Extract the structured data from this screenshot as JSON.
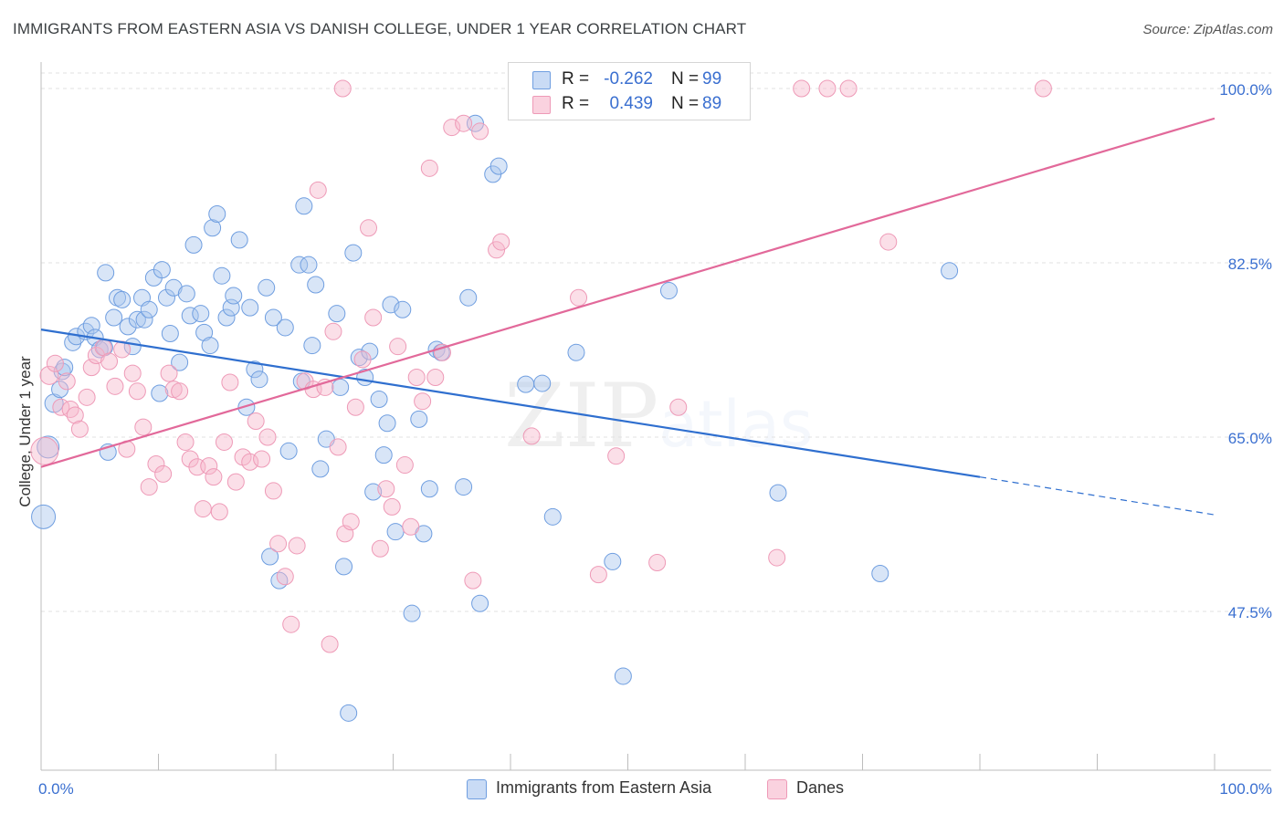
{
  "title": "IMMIGRANTS FROM EASTERN ASIA VS DANISH COLLEGE, UNDER 1 YEAR CORRELATION CHART",
  "source": "Source: ZipAtlas.com",
  "watermark": {
    "zip": "ZIP",
    "atlas": "atlas"
  },
  "legend": {
    "rows": [
      {
        "r_label": "R =",
        "r_value": "-0.262",
        "n_label": "N =",
        "n_value": "99",
        "color": "#a9c6ee"
      },
      {
        "r_label": "R =",
        "r_value": "0.439",
        "n_label": "N =",
        "n_value": "89",
        "color": "#f6b7cb"
      }
    ]
  },
  "bottom_legend": [
    {
      "label": "Immigrants from Eastern Asia",
      "color": "#a9c6ee"
    },
    {
      "label": "Danes",
      "color": "#f6b7cb"
    }
  ],
  "chart_data": {
    "type": "scatter",
    "title": "IMMIGRANTS FROM EASTERN ASIA VS DANISH COLLEGE, UNDER 1 YEAR CORRELATION CHART",
    "xlabel": "",
    "ylabel": "College, Under 1 year",
    "xlim": [
      0,
      100
    ],
    "ylim": [
      33,
      103
    ],
    "x_tick_labels": [
      "0.0%",
      "100.0%"
    ],
    "y_ticks": [
      47.5,
      65.0,
      82.5,
      100.0
    ],
    "y_tick_labels": [
      "47.5%",
      "65.0%",
      "82.5%",
      "100.0%"
    ],
    "grid": true,
    "legend_position": "top-center",
    "series": [
      {
        "name": "Immigrants from Eastern Asia",
        "color": "#6f9ee0",
        "fill": "#a9c6ee",
        "trend": {
          "x": [
            0,
            80
          ],
          "y": [
            75.8,
            61.0
          ],
          "dashed_to": [
            100,
            57.2
          ],
          "color": "#2f6fcf"
        },
        "points": [
          [
            0.2,
            57.0,
            12
          ],
          [
            0.6,
            64.0,
            11
          ],
          [
            1.1,
            68.4,
            9
          ],
          [
            1.6,
            69.8,
            8
          ],
          [
            1.8,
            71.6,
            8
          ],
          [
            2.0,
            72.0,
            8
          ],
          [
            2.7,
            74.5,
            8
          ],
          [
            3.0,
            75.1,
            8
          ],
          [
            3.8,
            75.6,
            8
          ],
          [
            4.3,
            76.2,
            8
          ],
          [
            4.6,
            75.0,
            8
          ],
          [
            5.0,
            73.8,
            8
          ],
          [
            5.4,
            74.0,
            8
          ],
          [
            5.5,
            81.5,
            8
          ],
          [
            5.7,
            63.5,
            8
          ],
          [
            6.2,
            77.0,
            8
          ],
          [
            6.5,
            79.0,
            8
          ],
          [
            6.9,
            78.8,
            8
          ],
          [
            7.4,
            76.1,
            8
          ],
          [
            7.8,
            74.1,
            8
          ],
          [
            8.2,
            76.8,
            8
          ],
          [
            8.6,
            79.0,
            8
          ],
          [
            8.8,
            76.8,
            8
          ],
          [
            9.2,
            77.8,
            8
          ],
          [
            9.6,
            81.0,
            8
          ],
          [
            10.1,
            69.4,
            8
          ],
          [
            10.3,
            81.8,
            8
          ],
          [
            10.7,
            79.0,
            8
          ],
          [
            11.0,
            75.4,
            8
          ],
          [
            11.3,
            80.0,
            8
          ],
          [
            11.8,
            72.5,
            8
          ],
          [
            12.4,
            79.4,
            8
          ],
          [
            12.7,
            77.2,
            8
          ],
          [
            13.0,
            84.3,
            8
          ],
          [
            13.6,
            77.4,
            8
          ],
          [
            13.9,
            75.5,
            8
          ],
          [
            14.4,
            74.2,
            8
          ],
          [
            14.6,
            86.0,
            8
          ],
          [
            15.0,
            87.4,
            8
          ],
          [
            15.4,
            81.2,
            8
          ],
          [
            15.8,
            77.0,
            8
          ],
          [
            16.2,
            78.0,
            8
          ],
          [
            16.4,
            79.2,
            8
          ],
          [
            16.9,
            84.8,
            8
          ],
          [
            17.5,
            68.0,
            8
          ],
          [
            17.8,
            78.0,
            8
          ],
          [
            18.2,
            71.8,
            8
          ],
          [
            18.6,
            70.8,
            8
          ],
          [
            19.2,
            80.0,
            8
          ],
          [
            19.5,
            53.0,
            8
          ],
          [
            19.8,
            77.0,
            8
          ],
          [
            20.3,
            50.6,
            8
          ],
          [
            20.8,
            76.0,
            8
          ],
          [
            21.1,
            63.6,
            8
          ],
          [
            22.0,
            82.3,
            8
          ],
          [
            22.2,
            70.6,
            8
          ],
          [
            22.4,
            88.2,
            8
          ],
          [
            22.8,
            82.3,
            8
          ],
          [
            23.1,
            74.2,
            8
          ],
          [
            23.4,
            80.3,
            8
          ],
          [
            23.8,
            61.8,
            8
          ],
          [
            24.3,
            64.8,
            8
          ],
          [
            25.2,
            77.4,
            8
          ],
          [
            25.5,
            70.0,
            8
          ],
          [
            25.8,
            52.0,
            8
          ],
          [
            26.2,
            37.3,
            8
          ],
          [
            26.6,
            83.5,
            8
          ],
          [
            27.1,
            73.0,
            8
          ],
          [
            27.6,
            71.0,
            8
          ],
          [
            28.0,
            73.6,
            8
          ],
          [
            28.3,
            59.5,
            8
          ],
          [
            28.8,
            68.8,
            8
          ],
          [
            29.2,
            63.2,
            8
          ],
          [
            29.5,
            66.4,
            8
          ],
          [
            29.8,
            78.3,
            8
          ],
          [
            30.2,
            55.5,
            8
          ],
          [
            30.8,
            77.8,
            8
          ],
          [
            31.6,
            47.3,
            8
          ],
          [
            32.2,
            66.8,
            8
          ],
          [
            32.6,
            55.3,
            8
          ],
          [
            33.1,
            59.8,
            8
          ],
          [
            33.7,
            73.8,
            8
          ],
          [
            34.1,
            73.5,
            8
          ],
          [
            36.0,
            60.0,
            8
          ],
          [
            36.4,
            79.0,
            8
          ],
          [
            37.0,
            96.5,
            8
          ],
          [
            37.4,
            48.3,
            8
          ],
          [
            38.5,
            91.4,
            8
          ],
          [
            39.0,
            92.2,
            8
          ],
          [
            41.3,
            70.3,
            8
          ],
          [
            42.7,
            70.4,
            8
          ],
          [
            43.6,
            57.0,
            8
          ],
          [
            45.6,
            73.5,
            8
          ],
          [
            48.7,
            52.5,
            8
          ],
          [
            49.6,
            41.0,
            8
          ],
          [
            53.5,
            79.7,
            8
          ],
          [
            62.8,
            59.4,
            8
          ],
          [
            71.5,
            51.3,
            8
          ],
          [
            77.4,
            81.7,
            8
          ]
        ]
      },
      {
        "name": "Danes",
        "color": "#ee9ab7",
        "fill": "#f6b7cb",
        "trend": {
          "x": [
            0,
            100
          ],
          "y": [
            62.0,
            97.0
          ],
          "color": "#e2699a"
        },
        "points": [
          [
            0.3,
            63.6,
            14
          ],
          [
            0.7,
            71.2,
            9
          ],
          [
            1.2,
            72.4,
            8
          ],
          [
            1.7,
            68.0,
            8
          ],
          [
            2.2,
            70.6,
            8
          ],
          [
            2.5,
            67.8,
            8
          ],
          [
            2.9,
            67.2,
            8
          ],
          [
            3.3,
            65.8,
            8
          ],
          [
            3.9,
            69.0,
            8
          ],
          [
            4.3,
            72.0,
            8
          ],
          [
            4.7,
            73.2,
            8
          ],
          [
            5.3,
            74.0,
            8
          ],
          [
            5.8,
            72.6,
            8
          ],
          [
            6.3,
            70.1,
            8
          ],
          [
            6.9,
            73.8,
            8
          ],
          [
            7.3,
            63.8,
            8
          ],
          [
            7.8,
            71.4,
            8
          ],
          [
            8.2,
            69.6,
            8
          ],
          [
            8.7,
            66.0,
            8
          ],
          [
            9.2,
            60.0,
            8
          ],
          [
            9.8,
            62.3,
            8
          ],
          [
            10.4,
            61.3,
            8
          ],
          [
            10.9,
            71.4,
            8
          ],
          [
            11.3,
            69.8,
            8
          ],
          [
            11.8,
            69.6,
            8
          ],
          [
            12.3,
            64.5,
            8
          ],
          [
            12.7,
            62.8,
            8
          ],
          [
            13.3,
            62.0,
            8
          ],
          [
            13.8,
            57.8,
            8
          ],
          [
            14.3,
            62.1,
            8
          ],
          [
            14.7,
            61.0,
            8
          ],
          [
            15.2,
            57.5,
            8
          ],
          [
            15.6,
            64.5,
            8
          ],
          [
            16.1,
            70.5,
            8
          ],
          [
            16.6,
            60.5,
            8
          ],
          [
            17.2,
            63.0,
            8
          ],
          [
            17.8,
            62.5,
            8
          ],
          [
            18.3,
            66.6,
            8
          ],
          [
            18.8,
            62.8,
            8
          ],
          [
            19.3,
            65.0,
            8
          ],
          [
            19.8,
            59.6,
            8
          ],
          [
            20.2,
            54.3,
            8
          ],
          [
            20.8,
            51.0,
            8
          ],
          [
            21.3,
            46.2,
            8
          ],
          [
            21.8,
            54.1,
            8
          ],
          [
            22.5,
            70.6,
            8
          ],
          [
            23.2,
            69.8,
            8
          ],
          [
            23.6,
            89.8,
            8
          ],
          [
            24.2,
            70.0,
            8
          ],
          [
            24.6,
            44.2,
            8
          ],
          [
            24.9,
            75.6,
            8
          ],
          [
            25.3,
            64.0,
            8
          ],
          [
            25.9,
            55.3,
            8
          ],
          [
            26.4,
            56.5,
            8
          ],
          [
            26.8,
            68.0,
            8
          ],
          [
            27.4,
            72.8,
            8
          ],
          [
            27.9,
            86.0,
            8
          ],
          [
            28.3,
            77.0,
            8
          ],
          [
            28.9,
            53.8,
            8
          ],
          [
            29.4,
            59.8,
            8
          ],
          [
            29.9,
            58.0,
            8
          ],
          [
            30.4,
            74.1,
            8
          ],
          [
            31.0,
            62.2,
            8
          ],
          [
            31.5,
            56.0,
            8
          ],
          [
            32.0,
            71.0,
            8
          ],
          [
            32.5,
            68.6,
            8
          ],
          [
            33.1,
            92.0,
            8
          ],
          [
            33.6,
            71.0,
            8
          ],
          [
            34.2,
            73.5,
            8
          ],
          [
            35.0,
            96.1,
            8
          ],
          [
            36.0,
            96.5,
            8
          ],
          [
            36.8,
            50.6,
            8
          ],
          [
            37.4,
            95.7,
            8
          ],
          [
            38.8,
            83.8,
            8
          ],
          [
            39.2,
            84.6,
            8
          ],
          [
            41.8,
            65.1,
            8
          ],
          [
            45.3,
            100.0,
            8
          ],
          [
            45.8,
            79.0,
            8
          ],
          [
            47.5,
            51.2,
            8
          ],
          [
            49.0,
            63.1,
            8
          ],
          [
            52.5,
            52.4,
            8
          ],
          [
            54.3,
            68.0,
            8
          ],
          [
            62.7,
            52.9,
            8
          ],
          [
            64.8,
            100.0,
            8
          ],
          [
            67.0,
            100.0,
            8
          ],
          [
            68.8,
            100.0,
            8
          ],
          [
            72.2,
            84.6,
            8
          ],
          [
            85.4,
            100.0,
            8
          ],
          [
            25.7,
            100.0,
            8
          ]
        ]
      }
    ]
  }
}
